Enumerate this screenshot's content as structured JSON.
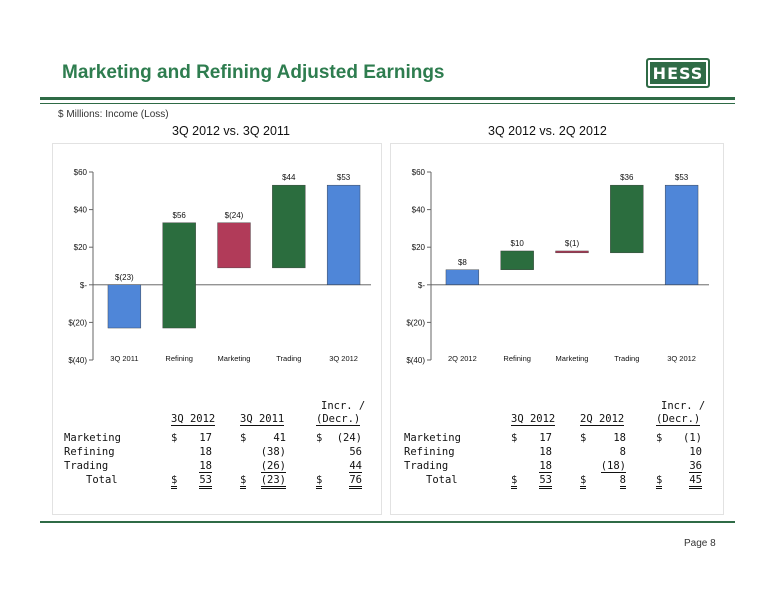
{
  "header": {
    "title": "Marketing and Refining Adjusted Earnings",
    "logo_text": "HESS",
    "subtitle": "$ Millions: Income (Loss)"
  },
  "colors": {
    "accent": "#2f6b46",
    "blue": "#4f86d8",
    "green": "#2b6d3e",
    "red": "#b13b59"
  },
  "chart_data": [
    {
      "type": "bar",
      "title": "3Q 2012 vs. 3Q 2011",
      "categories": [
        "3Q 2011",
        "Refining",
        "Marketing",
        "Trading",
        "3Q 2012"
      ],
      "values": [
        -23,
        56,
        -24,
        44,
        53
      ],
      "data_labels": [
        "$(23)",
        "$56",
        "$(24)",
        "$44",
        "$53"
      ],
      "y_ticks": [
        "$60",
        "$40",
        "$20",
        "$-",
        "$(20)",
        "$(40)"
      ],
      "ylim": [
        -40,
        60
      ]
    },
    {
      "type": "bar",
      "title": "3Q 2012 vs. 2Q 2012",
      "categories": [
        "2Q 2012",
        "Refining",
        "Marketing",
        "Trading",
        "3Q 2012"
      ],
      "values": [
        8,
        10,
        -1,
        36,
        53
      ],
      "data_labels": [
        "$8",
        "$10",
        "$(1)",
        "$36",
        "$53"
      ],
      "y_ticks": [
        "$60",
        "$40",
        "$20",
        "$-",
        "$(20)",
        "$(40)"
      ],
      "ylim": [
        -40,
        60
      ]
    }
  ],
  "tables": [
    {
      "headers": [
        "3Q 2012",
        "3Q 2011",
        "Incr. /",
        "(Decr.)"
      ],
      "rows": [
        {
          "label": "Marketing",
          "c1": "17",
          "c2": "41",
          "c3": "(24)"
        },
        {
          "label": "Refining",
          "c1": "18",
          "c2": "(38)",
          "c3": "56"
        },
        {
          "label": "Trading",
          "c1": "18",
          "c2": "(26)",
          "c3": "44"
        },
        {
          "label": "Total",
          "c1": "53",
          "c2": "(23)",
          "c3": "76"
        }
      ],
      "dollar": "$"
    },
    {
      "headers": [
        "3Q 2012",
        "2Q 2012",
        "Incr. /",
        "(Decr.)"
      ],
      "rows": [
        {
          "label": "Marketing",
          "c1": "17",
          "c2": "18",
          "c3": "(1)"
        },
        {
          "label": "Refining",
          "c1": "18",
          "c2": "8",
          "c3": "10"
        },
        {
          "label": "Trading",
          "c1": "18",
          "c2": "(18)",
          "c3": "36"
        },
        {
          "label": "Total",
          "c1": "53",
          "c2": "8",
          "c3": "45"
        }
      ],
      "dollar": "$"
    }
  ],
  "footer": {
    "page": "Page 8"
  }
}
